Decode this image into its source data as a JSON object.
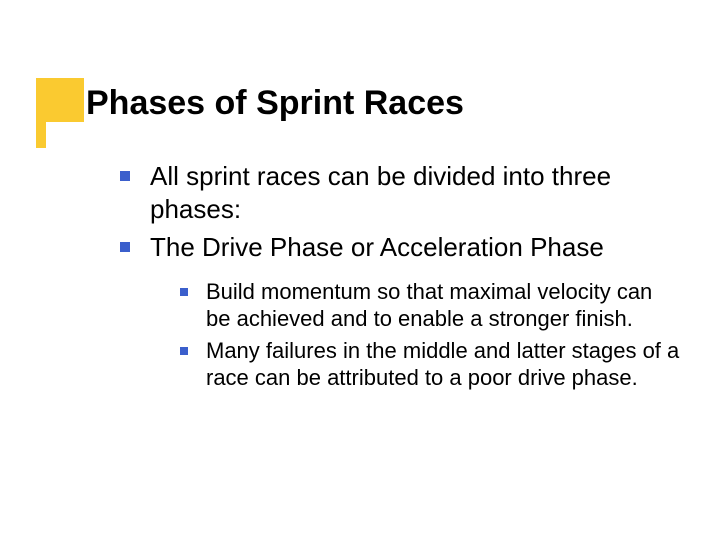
{
  "slide": {
    "title": "Phases of Sprint Races",
    "accent_color": "#faca30",
    "bullet_color": "#3b5fcc",
    "background_color": "#ffffff",
    "text_color": "#000000",
    "title_fontsize": 34,
    "level1_fontsize": 26,
    "level2_fontsize": 22,
    "items": [
      {
        "text": "All sprint races can be divided into three phases:",
        "children": []
      },
      {
        "text": "The Drive Phase or Acceleration Phase",
        "children": [
          {
            "text": "Build momentum so that maximal velocity can be achieved and to enable a stronger finish."
          },
          {
            "text": "Many failures in the middle and latter stages of a race can be attributed to a poor drive phase."
          }
        ]
      }
    ]
  }
}
